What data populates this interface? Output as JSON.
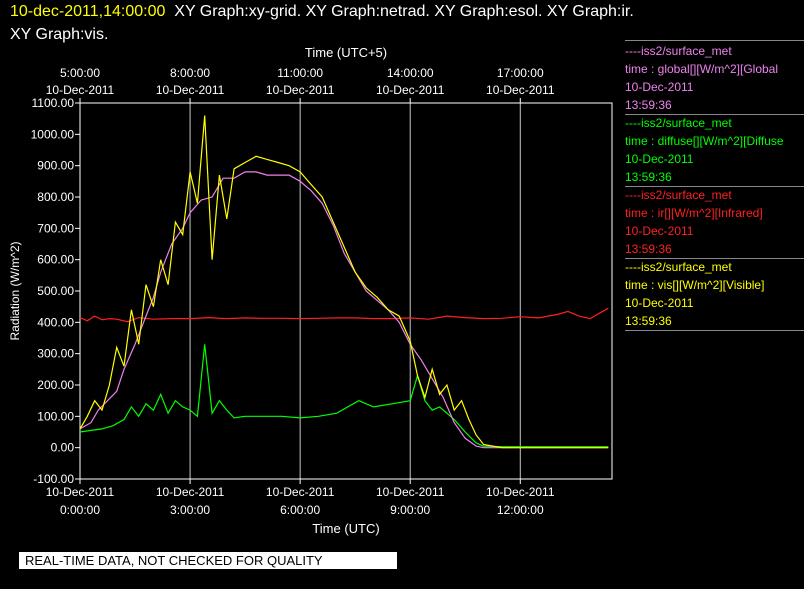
{
  "header": {
    "timestamp": "10-dec-2011,14:00:00",
    "graph_list_1": "XY Graph:xy-grid.  XY Graph:netrad.  XY Graph:esol.  XY Graph:ir.",
    "graph_list_2": "XY Graph:vis."
  },
  "legend": [
    {
      "source": "----iss2/surface_met",
      "var": "time : global[][W/m^2][Global",
      "date": "10-Dec-2011",
      "time": "13:59:36",
      "color": "#ee82ee"
    },
    {
      "source": "----iss2/surface_met",
      "var": "time : diffuse[][W/m^2][Diffuse",
      "date": "10-Dec-2011",
      "time": "13:59:36",
      "color": "#00ff00"
    },
    {
      "source": "----iss2/surface_met",
      "var": "time : ir[][W/m^2][Infrared]",
      "date": "10-Dec-2011",
      "time": "13:59:36",
      "color": "#ff2020"
    },
    {
      "source": "----iss2/surface_met",
      "var": "time : vis[][W/m^2][Visible]",
      "date": "10-Dec-2011",
      "time": "13:59:36",
      "color": "#ffff00"
    }
  ],
  "disclaimer": "REAL-TIME DATA, NOT CHECKED FOR QUALITY",
  "chart_data": {
    "type": "line",
    "title": "",
    "xlabel": "Time (UTC)",
    "x2label": "Time (UTC+5)",
    "ylabel": "Radiation (W/m^2)",
    "xlim": [
      0,
      14.5
    ],
    "ylim": [
      -100,
      1100
    ],
    "yticks": [
      -100,
      0,
      100,
      200,
      300,
      400,
      500,
      600,
      700,
      800,
      900,
      1000,
      1100
    ],
    "ytick_labels": [
      "-100.00",
      "0.00",
      "100.00",
      "200.00",
      "300.00",
      "400.00",
      "500.00",
      "600.00",
      "700.00",
      "800.00",
      "900.00",
      "1000.00",
      "1100.00"
    ],
    "xticks": [
      0,
      3,
      6,
      9,
      12
    ],
    "xtick_labels": [
      [
        "10-Dec-2011",
        "0:00:00"
      ],
      [
        "10-Dec-2011",
        "3:00:00"
      ],
      [
        "10-Dec-2011",
        "6:00:00"
      ],
      [
        "10-Dec-2011",
        "9:00:00"
      ],
      [
        "10-Dec-2011",
        "12:00:00"
      ]
    ],
    "x2ticks": [
      0,
      3,
      6,
      9,
      12
    ],
    "x2tick_labels": [
      [
        "5:00:00",
        "10-Dec-2011"
      ],
      [
        "8:00:00",
        "10-Dec-2011"
      ],
      [
        "11:00:00",
        "10-Dec-2011"
      ],
      [
        "14:00:00",
        "10-Dec-2011"
      ],
      [
        "17:00:00",
        "10-Dec-2011"
      ]
    ],
    "grid": true,
    "series": [
      {
        "name": "global",
        "color": "#ee82ee",
        "x": [
          0,
          0.3,
          0.5,
          1,
          1.2,
          1.5,
          1.8,
          2,
          2.2,
          2.5,
          2.8,
          3,
          3.3,
          3.6,
          3.9,
          4.2,
          4.5,
          4.8,
          5.1,
          5.4,
          5.7,
          6,
          6.3,
          6.6,
          6.9,
          7.2,
          7.5,
          7.8,
          8.1,
          8.4,
          8.7,
          9,
          9.3,
          9.6,
          9.9,
          10.2,
          10.5,
          10.8,
          11,
          11.5,
          12,
          12.5,
          13,
          13.5,
          14,
          14.4
        ],
        "y": [
          60,
          80,
          120,
          180,
          250,
          330,
          420,
          480,
          560,
          650,
          700,
          750,
          790,
          800,
          860,
          860,
          880,
          880,
          870,
          870,
          870,
          850,
          820,
          780,
          710,
          620,
          560,
          500,
          470,
          440,
          400,
          330,
          280,
          220,
          160,
          80,
          30,
          5,
          0,
          0,
          0,
          0,
          0,
          0,
          0,
          0
        ]
      },
      {
        "name": "diffuse",
        "color": "#00ff00",
        "x": [
          0,
          0.3,
          0.6,
          0.9,
          1.2,
          1.4,
          1.6,
          1.8,
          2.0,
          2.2,
          2.4,
          2.6,
          2.8,
          3.0,
          3.2,
          3.4,
          3.6,
          3.8,
          4.0,
          4.2,
          4.5,
          5,
          5.5,
          6,
          6.5,
          7,
          7.3,
          7.6,
          8,
          8.5,
          9,
          9.2,
          9.4,
          9.6,
          9.8,
          10.0,
          10.2,
          10.5,
          10.8,
          11,
          11.5,
          12,
          12.5,
          13,
          13.5,
          14,
          14.4
        ],
        "y": [
          50,
          55,
          60,
          70,
          90,
          130,
          100,
          140,
          120,
          170,
          110,
          150,
          130,
          120,
          100,
          330,
          110,
          150,
          120,
          95,
          100,
          100,
          100,
          95,
          100,
          110,
          130,
          150,
          130,
          140,
          150,
          230,
          150,
          120,
          130,
          110,
          90,
          50,
          15,
          5,
          3,
          3,
          3,
          3,
          3,
          3,
          3
        ]
      },
      {
        "name": "ir",
        "color": "#ff2020",
        "x": [
          0,
          0.2,
          0.4,
          0.6,
          0.8,
          1,
          1.3,
          1.6,
          2,
          2.5,
          3,
          3.5,
          4,
          4.5,
          5,
          5.5,
          6,
          6.5,
          7,
          7.5,
          8,
          8.5,
          9,
          9.5,
          10,
          10.5,
          11,
          11.5,
          12,
          12.5,
          13,
          13.3,
          13.6,
          13.9,
          14.2,
          14.4
        ],
        "y": [
          415,
          405,
          420,
          408,
          412,
          410,
          402,
          415,
          410,
          412,
          412,
          415,
          412,
          414,
          413,
          413,
          412,
          413,
          414,
          414,
          412,
          412,
          414,
          410,
          420,
          415,
          412,
          413,
          418,
          414,
          425,
          435,
          420,
          412,
          432,
          445
        ]
      },
      {
        "name": "vis",
        "color": "#ffff00",
        "x": [
          0,
          0.2,
          0.4,
          0.6,
          0.8,
          1.0,
          1.2,
          1.4,
          1.6,
          1.8,
          2.0,
          2.2,
          2.4,
          2.6,
          2.8,
          3.0,
          3.2,
          3.4,
          3.6,
          3.8,
          4.0,
          4.2,
          4.5,
          4.8,
          5.1,
          5.4,
          5.7,
          6,
          6.3,
          6.6,
          6.9,
          7.2,
          7.5,
          7.8,
          8.1,
          8.4,
          8.7,
          9,
          9.2,
          9.4,
          9.6,
          9.8,
          10.0,
          10.2,
          10.4,
          10.6,
          10.8,
          11,
          11.5,
          12,
          12.5,
          13,
          13.5,
          14,
          14.4
        ],
        "y": [
          60,
          100,
          150,
          120,
          200,
          320,
          260,
          440,
          330,
          520,
          450,
          600,
          520,
          720,
          680,
          880,
          780,
          1060,
          600,
          870,
          730,
          890,
          910,
          930,
          920,
          910,
          900,
          880,
          840,
          800,
          720,
          640,
          560,
          510,
          480,
          440,
          420,
          340,
          230,
          160,
          250,
          170,
          200,
          120,
          150,
          90,
          40,
          10,
          0,
          0,
          0,
          0,
          0,
          0,
          0
        ]
      }
    ]
  }
}
